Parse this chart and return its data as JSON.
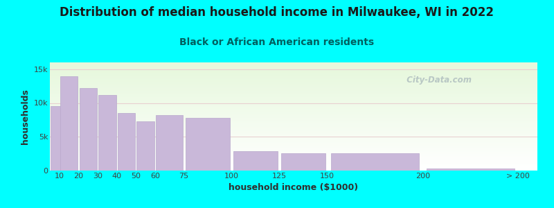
{
  "title": "Distribution of median household income in Milwaukee, WI in 2022",
  "subtitle": "Black or African American residents",
  "xlabel": "household income ($1000)",
  "ylabel": "households",
  "background_outer": "#00FFFF",
  "bar_color": "#c9b8d9",
  "bar_edge_color": "#b8a8cc",
  "categories": [
    "10",
    "20",
    "30",
    "40",
    "50",
    "60",
    "75",
    "100",
    "125",
    "150",
    "200",
    "> 200"
  ],
  "left_edges": [
    5,
    10,
    20,
    30,
    40,
    50,
    60,
    75,
    100,
    125,
    150,
    200
  ],
  "widths": [
    10,
    10,
    10,
    10,
    10,
    10,
    15,
    25,
    25,
    25,
    50,
    50
  ],
  "values": [
    9500,
    14000,
    12200,
    11200,
    8500,
    7300,
    8200,
    7800,
    2900,
    2600,
    2600,
    350
  ],
  "ylim": [
    0,
    16000
  ],
  "yticks": [
    0,
    5000,
    10000,
    15000
  ],
  "ytick_labels": [
    "0",
    "5k",
    "10k",
    "15k"
  ],
  "xtick_positions": [
    10,
    20,
    30,
    40,
    50,
    60,
    75,
    100,
    125,
    150,
    200,
    250
  ],
  "xtick_labels": [
    "10",
    "20",
    "30",
    "40",
    "50",
    "60",
    "75",
    "100",
    "125",
    "150",
    "200",
    "> 200"
  ],
  "xlim": [
    5,
    260
  ],
  "title_fontsize": 12,
  "subtitle_fontsize": 10,
  "axis_label_fontsize": 9,
  "tick_fontsize": 8,
  "title_color": "#1a1a1a",
  "subtitle_color": "#006060",
  "axis_label_color": "#303030",
  "tick_color": "#404040",
  "grid_color": "#e8d0d0",
  "watermark_text": "  City-Data.com",
  "watermark_color": "#b0bfbf"
}
